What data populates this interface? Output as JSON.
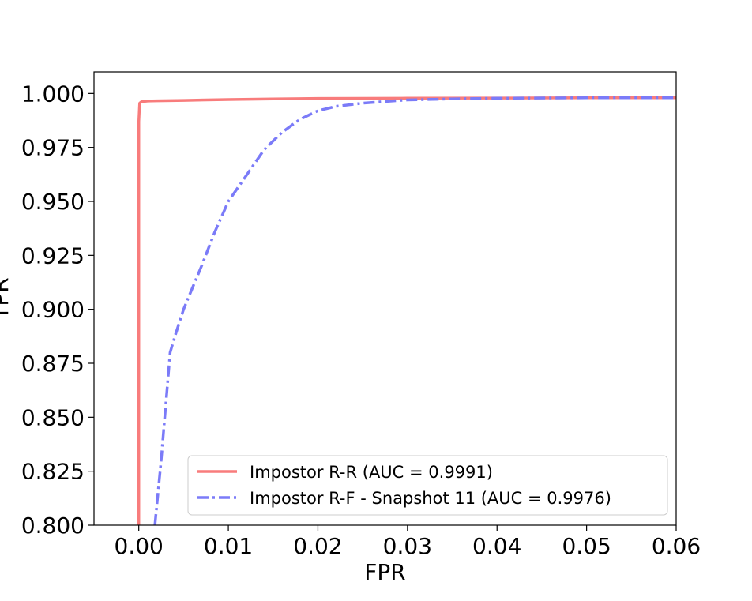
{
  "chart_data": {
    "type": "line",
    "title": "",
    "xlabel": "FPR",
    "ylabel": "TPR",
    "xlim": [
      -0.005,
      0.06
    ],
    "ylim": [
      0.8,
      1.01
    ],
    "xticks": [
      "0.00",
      "0.01",
      "0.02",
      "0.03",
      "0.04",
      "0.05",
      "0.06"
    ],
    "xtick_values": [
      0,
      0.01,
      0.02,
      0.03,
      0.04,
      0.05,
      0.06
    ],
    "yticks": [
      "0.800",
      "0.825",
      "0.850",
      "0.875",
      "0.900",
      "0.925",
      "0.950",
      "0.975",
      "1.000"
    ],
    "ytick_values": [
      0.8,
      0.825,
      0.85,
      0.875,
      0.9,
      0.925,
      0.95,
      0.975,
      1.0
    ],
    "grid": false,
    "legend_position": "lower-right",
    "series": [
      {
        "name": "Impostor R-R (AUC = 0.9991)",
        "color": "#f87c7c",
        "style": "solid",
        "x": [
          0,
          0,
          0,
          0.0001,
          0.0003,
          0.001,
          0.002,
          0.005,
          0.01,
          0.015,
          0.02,
          0.03,
          0.04,
          0.05,
          0.06
        ],
        "y": [
          0.8,
          0.95,
          0.987,
          0.9955,
          0.9962,
          0.9965,
          0.9966,
          0.9968,
          0.9972,
          0.9975,
          0.9977,
          0.9978,
          0.9979,
          0.998,
          0.998
        ]
      },
      {
        "name": "Impostor R-F - Snapshot 11 (AUC = 0.9976)",
        "color": "#7b7bf8",
        "style": "dashdot",
        "x": [
          0.0018,
          0.0025,
          0.003,
          0.0035,
          0.004,
          0.005,
          0.006,
          0.007,
          0.0085,
          0.01,
          0.012,
          0.014,
          0.016,
          0.018,
          0.02,
          0.022,
          0.025,
          0.03,
          0.035,
          0.04,
          0.05,
          0.06
        ],
        "y": [
          0.8,
          0.83,
          0.855,
          0.88,
          0.887,
          0.9,
          0.91,
          0.92,
          0.936,
          0.95,
          0.962,
          0.974,
          0.982,
          0.988,
          0.992,
          0.994,
          0.9955,
          0.997,
          0.9975,
          0.9978,
          0.998,
          0.998
        ]
      }
    ]
  }
}
